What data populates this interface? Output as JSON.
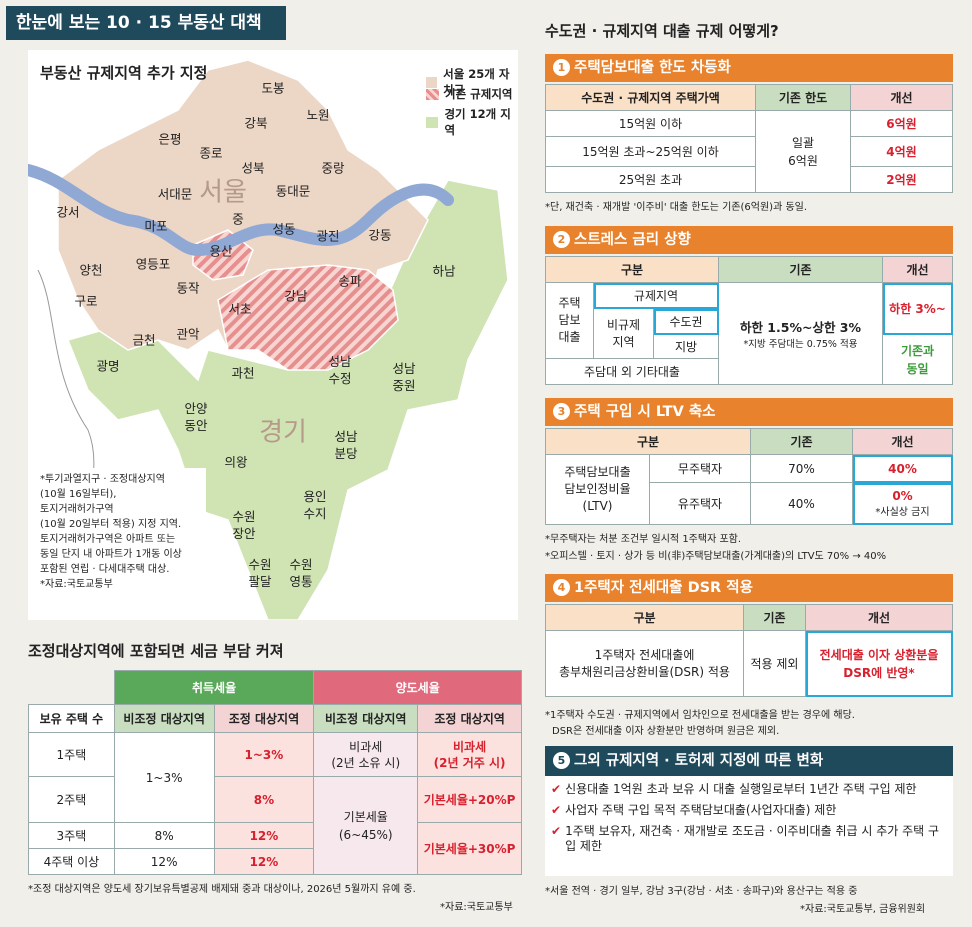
{
  "headline": "한눈에 보는 10 · 15 부동산 대책",
  "map": {
    "title": "부동산 규제지역 추가 지정",
    "legend": [
      {
        "label": "서울 25개 자치구",
        "color": "#ecd6c5"
      },
      {
        "label": "기존 규제지역",
        "color": "#e79a9a"
      },
      {
        "label": "경기 12개 지역",
        "color": "#cfe3b3"
      }
    ],
    "seoul_label": "서울",
    "gyeonggi_label": "경기",
    "districts": [
      "도봉",
      "노원",
      "강북",
      "은평",
      "성북",
      "종로",
      "중랑",
      "동대문",
      "서대문",
      "중",
      "강서",
      "마포",
      "성동",
      "광진",
      "강동",
      "용산",
      "양천",
      "영등포",
      "동작",
      "구로",
      "서초",
      "강남",
      "송파",
      "하남",
      "금천",
      "관악",
      "광명",
      "과천",
      "성남 수정",
      "성남 중원",
      "안양 동안",
      "성남 분당",
      "의왕",
      "용인 수지",
      "수원 장안",
      "수원 팔달",
      "수원 영통"
    ],
    "note_lines": [
      "*투기과열지구 · 조정대상지역",
      "(10월 16일부터),",
      "토지거래허가구역",
      "(10월 20일부터 적용) 지정 지역.",
      "토지거래허가구역은 아파트 또는",
      "동일 단지 내 아파트가 1개동 이상",
      "포함된 연립 · 다세대주택 대상.",
      "*자료:국토교통부"
    ]
  },
  "tax": {
    "title": "조정대상지역에 포함되면 세금 부담 커져",
    "groups": [
      "취득세율",
      "양도세율"
    ],
    "headers": [
      "보유 주택 수",
      "비조정 대상지역",
      "조정 대상지역",
      "비조정 대상지역",
      "조정 대상지역"
    ],
    "rows": [
      "1주택",
      "2주택",
      "3주택",
      "4주택 이상"
    ],
    "acq_nonadj": [
      "1~3%",
      "8%",
      "12%"
    ],
    "acq_adj": [
      "1~3%",
      "8%",
      "12%",
      "12%"
    ],
    "trans_nonadj": [
      "비과세",
      "(2년 소유 시)",
      "기본세율",
      "(6~45%)"
    ],
    "trans_adj": [
      "비과세",
      "(2년 거주 시)",
      "기본세율+20%P",
      "기본세율+30%P"
    ],
    "note": "*조정 대상지역은 양도세 장기보유특별공제 배제돼 중과 대상이나, 2026년 5월까지 유예 중.",
    "source": "*자료:국토교통부"
  },
  "right": {
    "title": "수도권 · 규제지역 대출 규제 어떻게?",
    "s1": {
      "num": "1",
      "title": "주택담보대출 한도 차등화",
      "headers": [
        "수도권 · 규제지역 주택가액",
        "기존 한도",
        "개선"
      ],
      "rows": [
        [
          "15억원 이하",
          "6억원"
        ],
        [
          "15억원 초과~25억원 이하",
          "4억원"
        ],
        [
          "25억원 초과",
          "2억원"
        ]
      ],
      "existing": [
        "일괄",
        "6억원"
      ],
      "note": "*단, 재건축 · 재개발 '이주비' 대출 한도는 기존(6억원)과 동일."
    },
    "s2": {
      "num": "2",
      "title": "스트레스 금리 상향",
      "headers": [
        "구분",
        "기존",
        "개선"
      ],
      "row_label": [
        "주택",
        "담보",
        "대출"
      ],
      "reg": "규제지역",
      "nonreg": [
        "비규제",
        "지역"
      ],
      "metro": "수도권",
      "local": "지방",
      "other": "주담대 외 기타대출",
      "existing": "하한 1.5%~상한 3%",
      "existing_note": "*지방 주담대는 0.75% 적용",
      "improve1": "하한 3%~",
      "improve2": [
        "기존과",
        "동일"
      ]
    },
    "s3": {
      "num": "3",
      "title": "주택 구입 시 LTV 축소",
      "headers": [
        "구분",
        "기존",
        "개선"
      ],
      "label": [
        "주택담보대출",
        "담보인정비율",
        "(LTV)"
      ],
      "rows": [
        [
          "무주택자",
          "70%",
          "40%"
        ],
        [
          "유주택자",
          "40%",
          "0%"
        ]
      ],
      "sub_note": "*사실상 금지",
      "notes": [
        "*무주택자는 처분 조건부 일시적 1주택자 포함.",
        "*오피스텔 · 토지 · 상가 등 비(非)주택담보대출(가계대출)의 LTV도 70% → 40%"
      ]
    },
    "s4": {
      "num": "4",
      "title": "1주택자 전세대출 DSR 적용",
      "headers": [
        "구분",
        "기존",
        "개선"
      ],
      "label": [
        "1주택자 전세대출에",
        "총부채원리금상환비율(DSR) 적용"
      ],
      "existing": "적용 제외",
      "improve": [
        "전세대출 이자 상환분을",
        "DSR에 반영*"
      ],
      "notes": [
        "*1주택자 수도권 · 규제지역에서 임차인으로 전세대출을 받는 경우에 해당.",
        "DSR은 전세대출 이자 상환분만 반영하며 원금은 제외."
      ]
    },
    "s5": {
      "num": "5",
      "title": "그외 규제지역 · 토허제 지정에 따른 변화",
      "items": [
        "신용대출 1억원 초과 보유 시 대출 실행일로부터 1년간 주택 구입 제한",
        "사업자 주택 구입 목적 주택담보대출(사업자대출) 제한",
        "1주택 보유자, 재건축 · 재개발로 조도금 · 이주비대출 취급 시 추가 주택 구입 제한"
      ],
      "note": "*서울 전역 · 경기 일부, 강남 3구(강남 · 서초 · 송파구)와 용산구는 적용 중",
      "source": "*자료:국토교통부, 금융위원회"
    }
  }
}
